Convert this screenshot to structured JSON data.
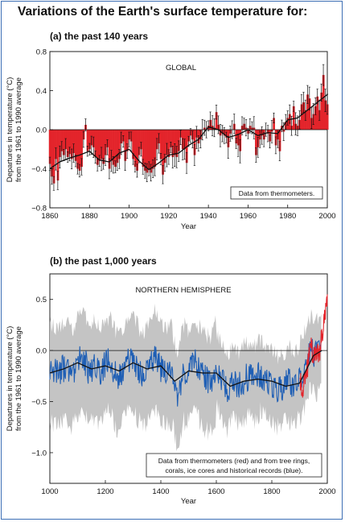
{
  "title": "Variations of the Earth's surface temperature for:",
  "chart_data": [
    {
      "type": "bar",
      "subtitle": "(a) the past 140 years",
      "region_label": "GLOBAL",
      "xlabel": "Year",
      "ylabel_line1": "Departures in temperature (°C)",
      "ylabel_line2": "from the 1961 to 1990 average",
      "xlim": [
        1860,
        2000
      ],
      "ylim": [
        -0.8,
        0.8
      ],
      "xticks": [
        1860,
        1880,
        1900,
        1920,
        1940,
        1960,
        1980,
        2000
      ],
      "yticks": [
        -0.8,
        -0.4,
        0.0,
        0.4,
        0.8
      ],
      "ytick_labels": [
        "−0.8",
        "−0.4",
        "0.0",
        "0.4",
        "0.8"
      ],
      "note_lines": [
        "Data from thermometers."
      ],
      "series": [
        {
          "name": "annual",
          "x": [
            1860,
            1861,
            1862,
            1863,
            1864,
            1865,
            1866,
            1867,
            1868,
            1869,
            1870,
            1871,
            1872,
            1873,
            1874,
            1875,
            1876,
            1877,
            1878,
            1879,
            1880,
            1881,
            1882,
            1883,
            1884,
            1885,
            1886,
            1887,
            1888,
            1889,
            1890,
            1891,
            1892,
            1893,
            1894,
            1895,
            1896,
            1897,
            1898,
            1899,
            1900,
            1901,
            1902,
            1903,
            1904,
            1905,
            1906,
            1907,
            1908,
            1909,
            1910,
            1911,
            1912,
            1913,
            1914,
            1915,
            1916,
            1917,
            1918,
            1919,
            1920,
            1921,
            1922,
            1923,
            1924,
            1925,
            1926,
            1927,
            1928,
            1929,
            1930,
            1931,
            1932,
            1933,
            1934,
            1935,
            1936,
            1937,
            1938,
            1939,
            1940,
            1941,
            1942,
            1943,
            1944,
            1945,
            1946,
            1947,
            1948,
            1949,
            1950,
            1951,
            1952,
            1953,
            1954,
            1955,
            1956,
            1957,
            1958,
            1959,
            1960,
            1961,
            1962,
            1963,
            1964,
            1965,
            1966,
            1967,
            1968,
            1969,
            1970,
            1971,
            1972,
            1973,
            1974,
            1975,
            1976,
            1977,
            1978,
            1979,
            1980,
            1981,
            1982,
            1983,
            1984,
            1985,
            1986,
            1987,
            1988,
            1989,
            1990,
            1991,
            1992,
            1993,
            1994,
            1995,
            1996,
            1997,
            1998,
            1999,
            2000
          ],
          "values": [
            -0.35,
            -0.48,
            -0.55,
            -0.3,
            -0.52,
            -0.28,
            -0.22,
            -0.26,
            -0.2,
            -0.28,
            -0.25,
            -0.3,
            -0.24,
            -0.32,
            -0.4,
            -0.42,
            -0.38,
            -0.1,
            0.05,
            -0.22,
            -0.2,
            -0.16,
            -0.18,
            -0.28,
            -0.36,
            -0.32,
            -0.3,
            -0.35,
            -0.26,
            -0.18,
            -0.4,
            -0.32,
            -0.36,
            -0.38,
            -0.34,
            -0.3,
            -0.14,
            -0.12,
            -0.32,
            -0.22,
            -0.1,
            -0.12,
            -0.3,
            -0.38,
            -0.42,
            -0.26,
            -0.2,
            -0.38,
            -0.42,
            -0.44,
            -0.4,
            -0.44,
            -0.4,
            -0.38,
            -0.2,
            -0.14,
            -0.3,
            -0.46,
            -0.34,
            -0.26,
            -0.28,
            -0.18,
            -0.28,
            -0.26,
            -0.28,
            -0.22,
            -0.08,
            -0.2,
            -0.2,
            -0.34,
            -0.12,
            -0.06,
            -0.1,
            -0.26,
            -0.08,
            -0.14,
            -0.1,
            0.0,
            0.02,
            0.0,
            0.04,
            0.1,
            0.04,
            0.02,
            0.18,
            0.05,
            -0.06,
            -0.04,
            -0.06,
            -0.08,
            -0.18,
            -0.04,
            0.0,
            0.06,
            -0.14,
            -0.16,
            -0.22,
            0.04,
            0.06,
            0.02,
            -0.04,
            0.04,
            0.02,
            0.02,
            -0.26,
            -0.18,
            -0.1,
            -0.06,
            -0.1,
            0.0,
            -0.04,
            -0.12,
            -0.02,
            0.12,
            -0.16,
            -0.1,
            -0.22,
            0.04,
            -0.02,
            0.08,
            0.12,
            0.16,
            0.04,
            0.24,
            0.06,
            0.04,
            0.1,
            0.26,
            0.28,
            0.2,
            0.36,
            0.32,
            0.12,
            0.16,
            0.24,
            0.34,
            0.2,
            0.38,
            0.56,
            0.3,
            0.26
          ]
        },
        {
          "name": "smoothed",
          "x": [
            1860,
            1865,
            1870,
            1875,
            1880,
            1885,
            1890,
            1895,
            1900,
            1905,
            1910,
            1915,
            1920,
            1925,
            1930,
            1935,
            1940,
            1945,
            1950,
            1955,
            1960,
            1965,
            1970,
            1975,
            1980,
            1985,
            1990,
            1995,
            2000
          ],
          "values": [
            -0.4,
            -0.33,
            -0.29,
            -0.26,
            -0.22,
            -0.31,
            -0.33,
            -0.24,
            -0.2,
            -0.32,
            -0.41,
            -0.34,
            -0.26,
            -0.24,
            -0.16,
            -0.1,
            0.03,
            0.0,
            -0.08,
            -0.05,
            0.0,
            -0.06,
            -0.03,
            -0.04,
            0.1,
            0.12,
            0.2,
            0.28,
            0.36
          ]
        }
      ]
    },
    {
      "type": "line",
      "subtitle": "(b) the past 1,000 years",
      "region_label": "NORTHERN HEMISPHERE",
      "xlabel": "Year",
      "ylabel_line1": "Departures in temperature (°C)",
      "ylabel_line2": "from the 1961 to 1990 average",
      "xlim": [
        1000,
        2000
      ],
      "ylim": [
        -1.3,
        0.75
      ],
      "xticks": [
        1000,
        1200,
        1400,
        1600,
        1800,
        2000
      ],
      "yticks": [
        -1.0,
        -0.5,
        0.0,
        0.5
      ],
      "ytick_labels": [
        "−1.0",
        "−0.5",
        "0.0",
        "0.5"
      ],
      "note_lines": [
        "Data from thermometers (red) and from tree rings,",
        "corals, ice cores and historical records (blue)."
      ],
      "series": [
        {
          "name": "proxy reconstruction",
          "x": [
            1000,
            1020,
            1040,
            1060,
            1080,
            1100,
            1120,
            1140,
            1160,
            1180,
            1200,
            1220,
            1240,
            1260,
            1280,
            1300,
            1320,
            1340,
            1360,
            1380,
            1400,
            1420,
            1440,
            1460,
            1480,
            1500,
            1520,
            1540,
            1560,
            1580,
            1600,
            1620,
            1640,
            1660,
            1680,
            1700,
            1720,
            1740,
            1760,
            1780,
            1800,
            1820,
            1840,
            1860,
            1880,
            1900,
            1920,
            1940,
            1960,
            1980
          ],
          "values": [
            -0.18,
            -0.22,
            -0.2,
            -0.15,
            -0.25,
            -0.12,
            -0.05,
            -0.2,
            -0.15,
            -0.22,
            -0.12,
            -0.1,
            -0.28,
            -0.22,
            -0.1,
            -0.08,
            -0.2,
            -0.25,
            -0.14,
            -0.05,
            -0.18,
            -0.22,
            -0.2,
            -0.5,
            -0.18,
            -0.22,
            -0.1,
            -0.2,
            -0.28,
            -0.3,
            -0.15,
            -0.28,
            -0.4,
            -0.25,
            -0.35,
            -0.28,
            -0.25,
            -0.3,
            -0.22,
            -0.28,
            -0.32,
            -0.38,
            -0.35,
            -0.3,
            -0.35,
            -0.28,
            -0.15,
            0.02,
            -0.05,
            0.05
          ]
        },
        {
          "name": "thermometer",
          "x": [
            1900,
            1910,
            1920,
            1930,
            1940,
            1950,
            1960,
            1970,
            1980,
            1990,
            2000
          ],
          "values": [
            -0.25,
            -0.4,
            -0.25,
            -0.15,
            0.05,
            -0.05,
            0.0,
            -0.05,
            0.15,
            0.3,
            0.55
          ]
        },
        {
          "name": "smoothed",
          "x": [
            1000,
            1050,
            1100,
            1150,
            1200,
            1250,
            1300,
            1350,
            1400,
            1450,
            1500,
            1550,
            1600,
            1650,
            1700,
            1750,
            1800,
            1850,
            1900,
            1950,
            1980
          ],
          "values": [
            -0.22,
            -0.18,
            -0.12,
            -0.18,
            -0.15,
            -0.2,
            -0.12,
            -0.18,
            -0.15,
            -0.3,
            -0.2,
            -0.22,
            -0.22,
            -0.35,
            -0.3,
            -0.28,
            -0.3,
            -0.35,
            -0.32,
            -0.05,
            0.0
          ]
        }
      ]
    }
  ]
}
